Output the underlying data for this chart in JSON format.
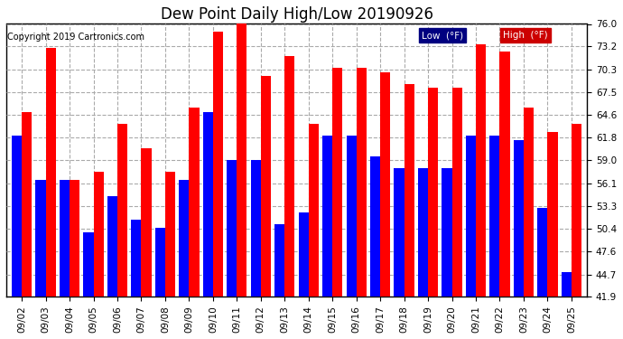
{
  "title": "Dew Point Daily High/Low 20190926",
  "copyright": "Copyright 2019 Cartronics.com",
  "dates": [
    "09/02",
    "09/03",
    "09/04",
    "09/05",
    "09/06",
    "09/07",
    "09/08",
    "09/09",
    "09/10",
    "09/11",
    "09/12",
    "09/13",
    "09/14",
    "09/15",
    "09/16",
    "09/17",
    "09/18",
    "09/19",
    "09/20",
    "09/21",
    "09/22",
    "09/23",
    "09/24",
    "09/25"
  ],
  "low_values": [
    62.0,
    56.5,
    56.5,
    50.0,
    54.5,
    51.5,
    50.5,
    56.5,
    65.0,
    59.0,
    59.0,
    51.0,
    52.5,
    62.0,
    62.0,
    59.5,
    58.0,
    58.0,
    58.0,
    62.0,
    62.0,
    61.5,
    53.0,
    45.0
  ],
  "high_values": [
    65.0,
    73.0,
    56.5,
    57.5,
    63.5,
    60.5,
    57.5,
    65.5,
    75.0,
    76.0,
    69.5,
    72.0,
    63.5,
    70.5,
    70.5,
    70.0,
    68.5,
    68.0,
    68.0,
    73.5,
    72.5,
    65.5,
    62.5,
    63.5
  ],
  "low_color": "#0000ff",
  "high_color": "#ff0000",
  "bg_color": "#ffffff",
  "plot_bg_color": "#ffffff",
  "grid_color": "#aaaaaa",
  "ylim_min": 41.9,
  "ylim_max": 76.0,
  "yticks": [
    41.9,
    44.7,
    47.6,
    50.4,
    53.3,
    56.1,
    59.0,
    61.8,
    64.6,
    67.5,
    70.3,
    73.2,
    76.0
  ],
  "title_fontsize": 12,
  "tick_fontsize": 7.5,
  "legend_low_label": "Low  (°F)",
  "legend_high_label": "High  (°F)",
  "legend_bg_blue": "#000080",
  "legend_bg_red": "#cc0000"
}
